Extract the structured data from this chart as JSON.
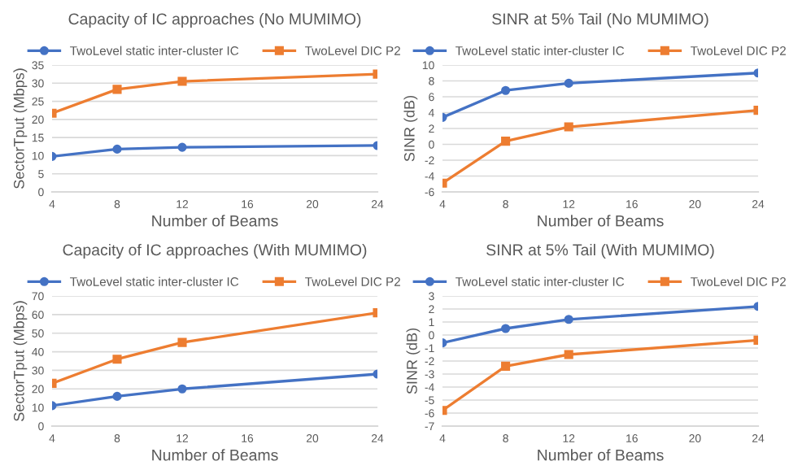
{
  "chart_data": [
    {
      "type": "line",
      "title": "Capacity of IC approaches (No MUMIMO)",
      "xlabel": "Number of Beams",
      "ylabel": "SectorTput (Mbps)",
      "x": [
        4,
        8,
        12,
        24
      ],
      "xlim": [
        4,
        24
      ],
      "xticks": [
        4,
        8,
        12,
        16,
        20,
        24
      ],
      "ylim": [
        0,
        35
      ],
      "yticks": [
        0,
        5,
        10,
        15,
        20,
        25,
        30,
        35
      ],
      "grid": "y",
      "legend": "top",
      "marker": "square",
      "series": [
        {
          "name": "TwoLevel static inter-cluster IC",
          "color": "#4472c4",
          "marker": "circle",
          "values": [
            9.8,
            11.8,
            12.3,
            12.8
          ]
        },
        {
          "name": "TwoLevel DIC P2",
          "color": "#ed7d31",
          "values": [
            21.7,
            28.3,
            30.5,
            32.5
          ]
        }
      ]
    },
    {
      "type": "line",
      "title": "SINR at 5% Tail (No MUMIMO)",
      "xlabel": "Number of Beams",
      "ylabel": "SINR (dB)",
      "x": [
        4,
        8,
        12,
        24
      ],
      "xlim": [
        4,
        24
      ],
      "xticks": [
        4,
        8,
        12,
        16,
        20,
        24
      ],
      "ylim": [
        -6,
        10
      ],
      "yticks": [
        -6,
        -4,
        -2,
        0,
        2,
        4,
        6,
        8,
        10
      ],
      "grid": "y",
      "legend": "top",
      "marker": "square",
      "series": [
        {
          "name": "TwoLevel static inter-cluster IC",
          "color": "#4472c4",
          "marker": "circle",
          "values": [
            3.4,
            6.8,
            7.7,
            9.0
          ]
        },
        {
          "name": "TwoLevel DIC P2",
          "color": "#ed7d31",
          "values": [
            -4.9,
            0.4,
            2.2,
            4.3
          ]
        }
      ]
    },
    {
      "type": "line",
      "title": "Capacity of IC approaches (With MUMIMO)",
      "xlabel": "Number of Beams",
      "ylabel": "SectorTput (Mbps)",
      "x": [
        4,
        8,
        12,
        24
      ],
      "xlim": [
        4,
        24
      ],
      "xticks": [
        4,
        8,
        12,
        16,
        20,
        24
      ],
      "ylim": [
        0,
        70
      ],
      "yticks": [
        0,
        10,
        20,
        30,
        40,
        50,
        60,
        70
      ],
      "grid": "y",
      "legend": "top",
      "marker": "square",
      "series": [
        {
          "name": "TwoLevel static inter-cluster IC",
          "color": "#4472c4",
          "marker": "circle",
          "values": [
            11,
            16,
            20,
            28
          ]
        },
        {
          "name": "TwoLevel DIC P2",
          "color": "#ed7d31",
          "values": [
            23,
            36,
            45,
            61
          ]
        }
      ]
    },
    {
      "type": "line",
      "title": "SINR at 5% Tail (With MUMIMO)",
      "xlabel": "Number of Beams",
      "ylabel": "SINR (dB)",
      "x": [
        4,
        8,
        12,
        24
      ],
      "xlim": [
        4,
        24
      ],
      "xticks": [
        4,
        8,
        12,
        16,
        20,
        24
      ],
      "ylim": [
        -7,
        3
      ],
      "yticks": [
        -7,
        -6,
        -5,
        -4,
        -3,
        -2,
        -1,
        0,
        1,
        2,
        3
      ],
      "grid": "y",
      "legend": "top",
      "marker": "square",
      "series": [
        {
          "name": "TwoLevel static inter-cluster IC",
          "color": "#4472c4",
          "marker": "circle",
          "values": [
            -0.6,
            0.5,
            1.2,
            2.2
          ]
        },
        {
          "name": "TwoLevel DIC P2",
          "color": "#ed7d31",
          "values": [
            -5.8,
            -2.4,
            -1.5,
            -0.4
          ]
        }
      ]
    }
  ]
}
